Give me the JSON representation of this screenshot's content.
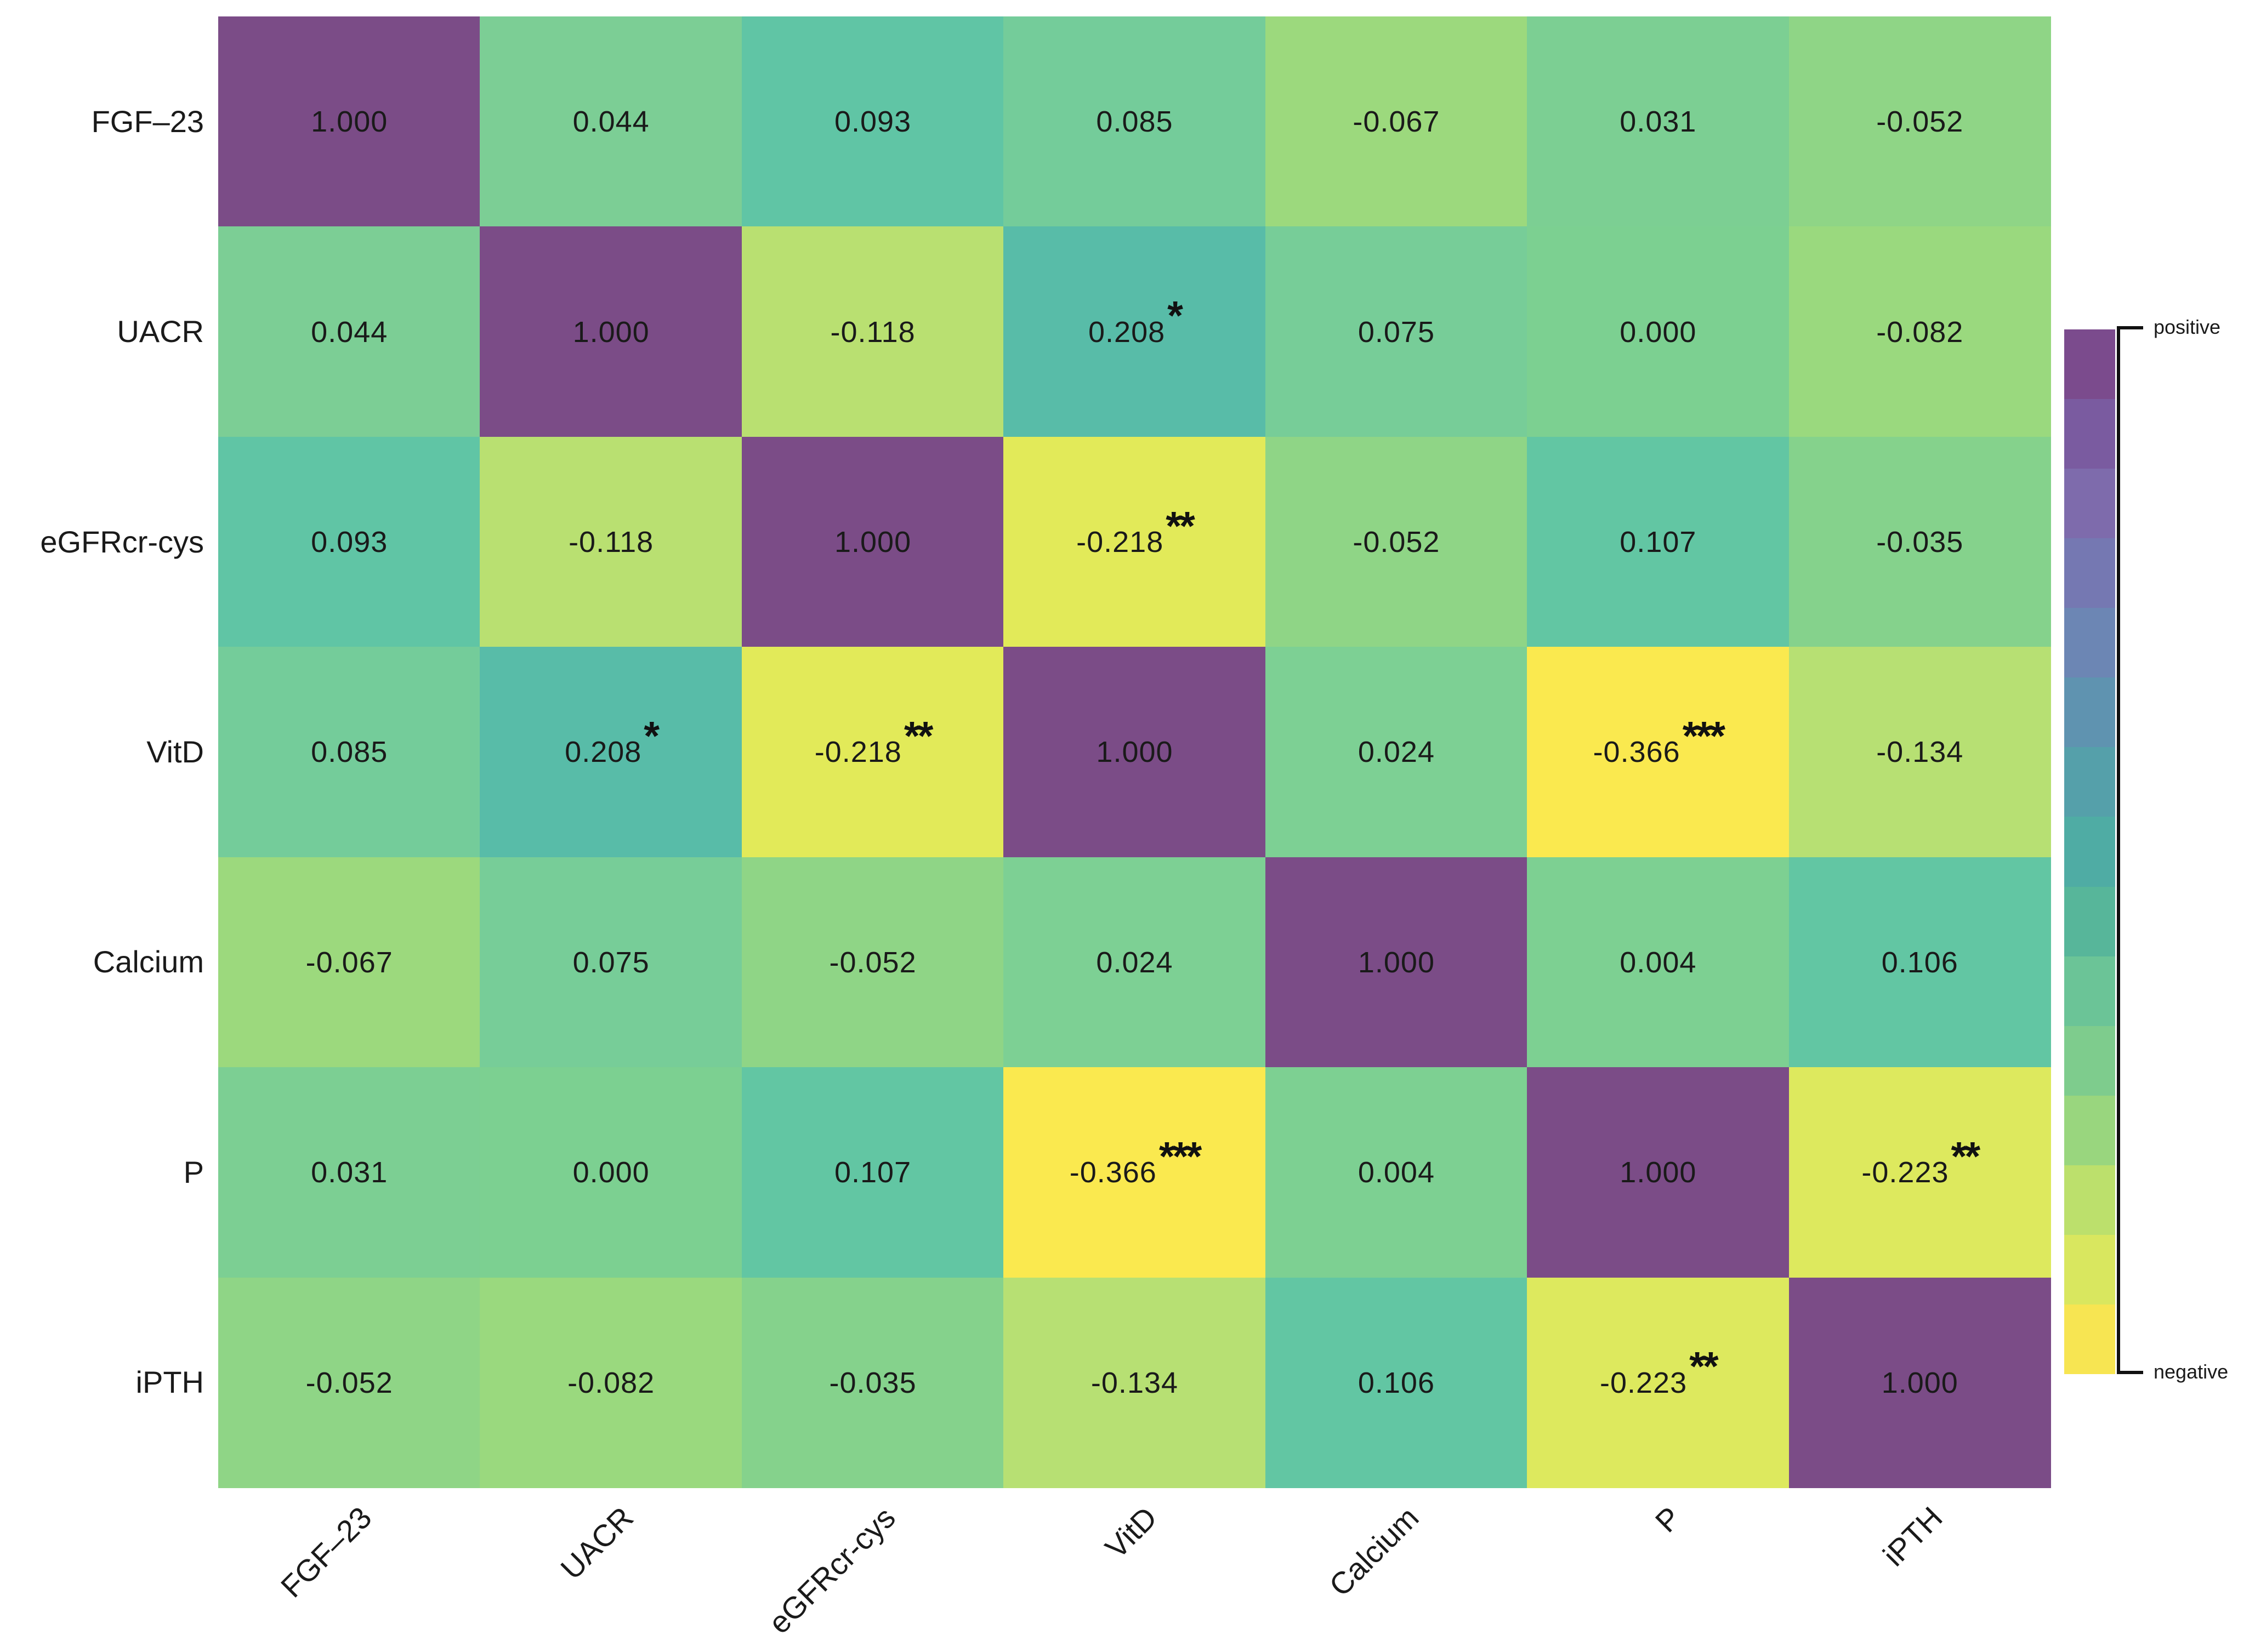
{
  "figure": {
    "background": "#ffffff",
    "text_color": "#1a1a1a"
  },
  "chart_data": {
    "type": "heatmap",
    "title": "",
    "xlabel": "",
    "ylabel": "",
    "variables": [
      "FGF–23",
      "UACR",
      "eGFRcr-cys",
      "VitD",
      "Calcium",
      "P",
      "iPTH"
    ],
    "x_labels": [
      "FGF–23",
      "UACR",
      "eGFRcr-cys",
      "VitD",
      "Calcium",
      "P",
      "iPTH"
    ],
    "value_decimals": 3,
    "matrix": [
      [
        1.0,
        0.044,
        0.093,
        0.085,
        -0.067,
        0.031,
        -0.052
      ],
      [
        0.044,
        1.0,
        -0.118,
        0.208,
        0.075,
        0.0,
        -0.082
      ],
      [
        0.093,
        -0.118,
        1.0,
        -0.218,
        -0.052,
        0.107,
        -0.035
      ],
      [
        0.085,
        0.208,
        -0.218,
        1.0,
        0.024,
        -0.366,
        -0.134
      ],
      [
        -0.067,
        0.075,
        -0.052,
        0.024,
        1.0,
        0.004,
        0.106
      ],
      [
        0.031,
        0.0,
        0.107,
        -0.366,
        0.004,
        1.0,
        -0.223
      ],
      [
        -0.052,
        -0.082,
        -0.035,
        -0.134,
        0.106,
        -0.223,
        1.0
      ]
    ],
    "significance": [
      [
        "",
        "",
        "",
        "",
        "",
        "",
        ""
      ],
      [
        "",
        "",
        "",
        "*",
        "",
        "",
        ""
      ],
      [
        "",
        "",
        "",
        "**",
        "",
        "",
        ""
      ],
      [
        "",
        "*",
        "**",
        "",
        "",
        "***",
        ""
      ],
      [
        "",
        "",
        "",
        "",
        "",
        "",
        ""
      ],
      [
        "",
        "",
        "",
        "***",
        "",
        "",
        "**"
      ],
      [
        "",
        "",
        "",
        "",
        "",
        "**",
        ""
      ]
    ],
    "cell_colors": [
      [
        "#7B4C87",
        "#7CCE95",
        "#60C5A5",
        "#74CC9A",
        "#9CD97D",
        "#7CCF93",
        "#8FD586"
      ],
      [
        "#7CCE95",
        "#7B4C87",
        "#B9E071",
        "#58BCA8",
        "#77CD98",
        "#7CD091",
        "#9AD97E"
      ],
      [
        "#60C5A5",
        "#B9E071",
        "#7B4C87",
        "#E2EA59",
        "#8FD586",
        "#62C6A3",
        "#85D28C"
      ],
      [
        "#74CC9A",
        "#58BCA8",
        "#E2EA59",
        "#7B4C87",
        "#7DD094",
        "#FAE94F",
        "#B7E073"
      ],
      [
        "#9CD97D",
        "#77CD98",
        "#8FD586",
        "#7DD094",
        "#7B4C87",
        "#7DD092",
        "#62C6A3"
      ],
      [
        "#7CCF93",
        "#7CD091",
        "#62C6A3",
        "#FAE94F",
        "#7DD092",
        "#7B4C87",
        "#DDE95E"
      ],
      [
        "#8FD586",
        "#9AD97E",
        "#85D28C",
        "#B7E073",
        "#62C6A3",
        "#DDE95E",
        "#7B4C87"
      ]
    ],
    "legend": {
      "top_label": "positive",
      "bottom_label": "negative",
      "colors": [
        "#7B4B8D",
        "#7A5BA0",
        "#7E6BAC",
        "#7578B2",
        "#6C86B4",
        "#5F93B0",
        "#55A0AA",
        "#4FACA4",
        "#57B69A",
        "#6BC497",
        "#7ECC8D",
        "#99D67E",
        "#BCE06C",
        "#D9E75F",
        "#F7E552"
      ]
    }
  }
}
